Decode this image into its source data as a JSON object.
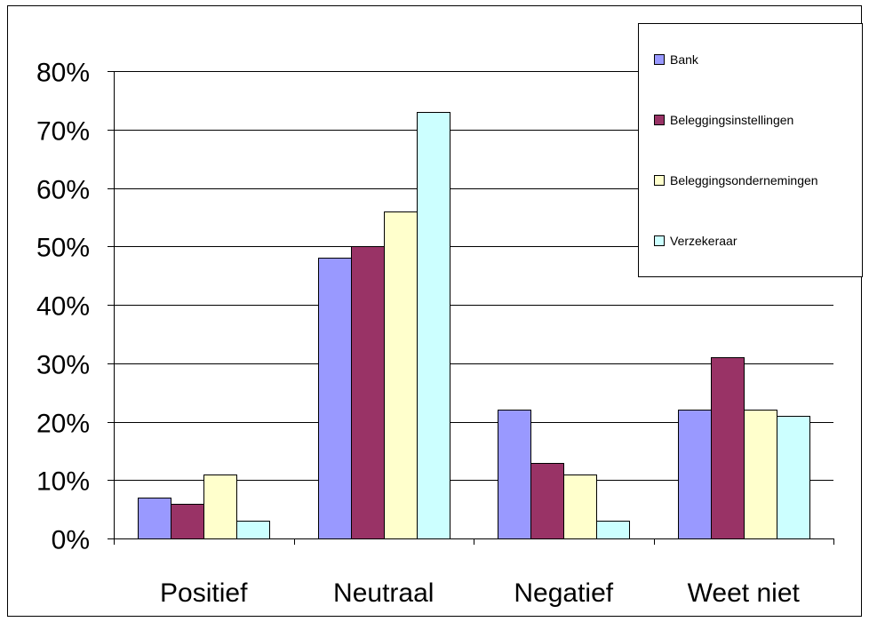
{
  "chart_data": {
    "type": "bar",
    "title": "",
    "xlabel": "",
    "ylabel": "",
    "categories": [
      "Positief",
      "Neutraal",
      "Negatief",
      "Weet niet"
    ],
    "series": [
      {
        "name": "Bank",
        "values": [
          7,
          48,
          22,
          22
        ],
        "color": "#9999ff"
      },
      {
        "name": "Beleggingsinstellingen",
        "values": [
          6,
          50,
          13,
          31
        ],
        "color": "#993366"
      },
      {
        "name": "Beleggingsondernemingen",
        "values": [
          11,
          56,
          11,
          22
        ],
        "color": "#ffffcc"
      },
      {
        "name": "Verzekeraar",
        "values": [
          3,
          73,
          3,
          21
        ],
        "color": "#ccffff"
      }
    ],
    "ylim": [
      0,
      80
    ],
    "yticks": [
      0,
      10,
      20,
      30,
      40,
      50,
      60,
      70,
      80
    ],
    "ytick_labels": [
      "0%",
      "10%",
      "20%",
      "30%",
      "40%",
      "50%",
      "60%",
      "70%",
      "80%"
    ],
    "grid": true,
    "legend_position": "top-right"
  }
}
